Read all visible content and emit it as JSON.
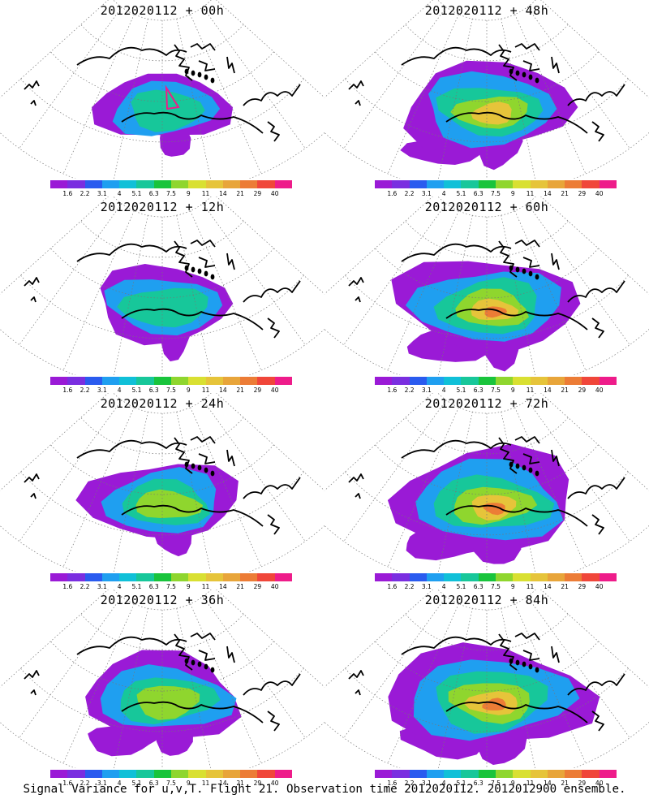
{
  "panels": [
    {
      "title": "2012020112 + 00h",
      "level": 0
    },
    {
      "title": "2012020112 + 48h",
      "level": 4
    },
    {
      "title": "2012020112 + 12h",
      "level": 1
    },
    {
      "title": "2012020112 + 60h",
      "level": 5
    },
    {
      "title": "2012020112 + 24h",
      "level": 2
    },
    {
      "title": "2012020112 + 72h",
      "level": 6
    },
    {
      "title": "2012020112 + 36h",
      "level": 3
    },
    {
      "title": "2012020112 + 84h",
      "level": 7
    }
  ],
  "legend": {
    "colors": [
      "#9a1ad6",
      "#7a2ee0",
      "#2a5bef",
      "#1f9ff0",
      "#10c0d8",
      "#17c79a",
      "#19c43c",
      "#8fd62e",
      "#d9e032",
      "#e6c43a",
      "#e8a53a",
      "#ec7c36",
      "#f0463a",
      "#ee1c8a"
    ],
    "labels": [
      "1.6",
      "2.2",
      "3.1",
      "4",
      "5.1",
      "6.3",
      "7.5",
      "9",
      "11",
      "14",
      "21",
      "29",
      "40"
    ]
  },
  "footer": "Signal Variance for u,v,T. Flight 21. Observation time 2012020112. 2012012900 ensemble."
}
